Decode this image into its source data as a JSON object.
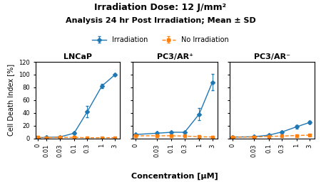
{
  "title": "Irradiation Dose: 12 J/mm²",
  "subtitle": "Analysis 24 hr Post Irradiation; Mean ± SD",
  "xlabel": "Concentration [μM]",
  "legend": "upper center",
  "chart_data": [
    {
      "type": "line",
      "title": "LNCaP",
      "ylabel": "Cell Death Index [%]",
      "log": "x",
      "xlim": [
        0.004,
        4.5
      ],
      "xticks": [
        {
          "value": 0.005,
          "label": "0"
        },
        0.01,
        0.03,
        0.1,
        0.3,
        1,
        3
      ],
      "ylim": [
        0,
        120
      ],
      "yticks": [
        0,
        20,
        40,
        60,
        80,
        100,
        120
      ],
      "x": [
        0.005,
        0.01,
        0.03,
        0.1,
        0.3,
        1.0,
        3.0
      ],
      "series": [
        {
          "name": "Irradiation",
          "marker": "diamond",
          "line_style": "solid",
          "values": [
            1.0,
            1.5,
            2.0,
            8.0,
            42.0,
            82.0,
            100.0
          ],
          "errors": [
            0.3,
            0.3,
            0.5,
            1.5,
            9.0,
            3.5,
            1.0
          ]
        },
        {
          "name": "No Irradiation",
          "marker": "square",
          "line_style": "dashed",
          "values": [
            1.5,
            1.0,
            1.5,
            1.5,
            1.0,
            1.0,
            1.0
          ],
          "errors": [
            0.3,
            0.3,
            0.3,
            0.3,
            0.3,
            0.3,
            0.3
          ]
        }
      ]
    },
    {
      "type": "line",
      "title": "PC3/AR⁺",
      "log": "x",
      "tick_labels": "x",
      "xlim": [
        0.004,
        4.5
      ],
      "xticks": [
        {
          "value": 0.005,
          "label": "0"
        },
        0.03,
        0.1,
        0.3,
        1,
        3
      ],
      "ylim": [
        0,
        120
      ],
      "yticks": [
        0,
        20,
        40,
        60,
        80,
        100,
        120
      ],
      "x": [
        0.005,
        0.03,
        0.1,
        0.3,
        1.0,
        3.0
      ],
      "series": [
        {
          "name": "Irradiation",
          "marker": "diamond",
          "line_style": "solid",
          "values": [
            6.0,
            8.0,
            9.5,
            9.5,
            38.0,
            88.0
          ],
          "errors": [
            1.0,
            1.5,
            1.5,
            1.5,
            10.0,
            13.0
          ]
        },
        {
          "name": "No Irradiation",
          "marker": "square",
          "line_style": "dashed",
          "values": [
            4.0,
            4.0,
            4.0,
            3.5,
            2.5,
            2.0
          ],
          "errors": [
            0.5,
            0.5,
            0.5,
            0.5,
            0.5,
            0.5
          ]
        }
      ]
    },
    {
      "type": "line",
      "title": "PC3/AR⁻",
      "log": "x",
      "tick_labels": "x",
      "xlim": [
        0.004,
        4.5
      ],
      "xticks": [
        {
          "value": 0.005,
          "label": "0"
        },
        0.03,
        0.1,
        0.3,
        1,
        3
      ],
      "ylim": [
        0,
        120
      ],
      "yticks": [
        0,
        20,
        40,
        60,
        80,
        100,
        120
      ],
      "x": [
        0.005,
        0.03,
        0.1,
        0.3,
        1.0,
        3.0
      ],
      "series": [
        {
          "name": "Irradiation",
          "marker": "diamond",
          "line_style": "solid",
          "values": [
            2.0,
            2.5,
            5.0,
            10.0,
            18.0,
            25.0
          ],
          "errors": [
            0.5,
            0.5,
            1.5,
            2.0,
            2.5,
            2.5
          ]
        },
        {
          "name": "No Irradiation",
          "marker": "square",
          "line_style": "dashed",
          "values": [
            2.0,
            2.0,
            3.0,
            3.5,
            4.5,
            5.0
          ],
          "errors": [
            0.3,
            0.3,
            0.5,
            0.5,
            0.5,
            0.5
          ]
        }
      ]
    }
  ]
}
